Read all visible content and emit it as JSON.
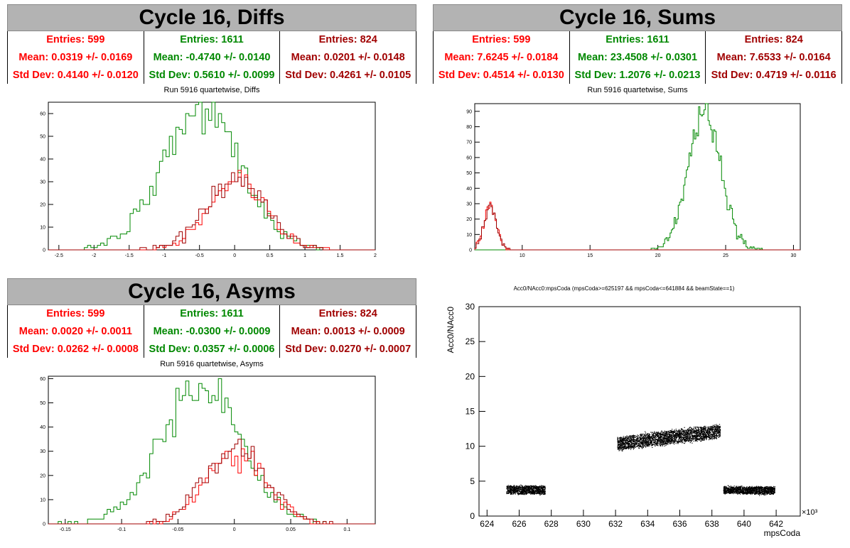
{
  "colors": {
    "red": "#ff0000",
    "green": "#008800",
    "darkred": "#a00000"
  },
  "panels": [
    {
      "title": "Cycle 16, Diffs",
      "stats": [
        {
          "entries": "Entries: 599",
          "mean": "Mean: 0.0319 +/- 0.0169",
          "std": "Std Dev: 0.4140 +/- 0.0120",
          "color": "#ff0000"
        },
        {
          "entries": "Entries: 1611",
          "mean": "Mean: -0.4740 +/- 0.0140",
          "std": "Std Dev: 0.5610 +/- 0.0099",
          "color": "#008800"
        },
        {
          "entries": "Entries: 824",
          "mean": "Mean: 0.0201 +/- 0.0148",
          "std": "Std Dev: 0.4261 +/- 0.0105",
          "color": "#a00000"
        }
      ],
      "subtitle": "Run 5916 quartetwise, Diffs"
    },
    {
      "title": "Cycle 16, Sums",
      "stats": [
        {
          "entries": "Entries: 599",
          "mean": "Mean: 7.6245 +/- 0.0184",
          "std": "Std Dev: 0.4514 +/- 0.0130",
          "color": "#ff0000"
        },
        {
          "entries": "Entries: 1611",
          "mean": "Mean: 23.4508 +/- 0.0301",
          "std": "Std Dev: 1.2076 +/- 0.0213",
          "color": "#008800"
        },
        {
          "entries": "Entries: 824",
          "mean": "Mean: 7.6533 +/- 0.0164",
          "std": "Std Dev: 0.4719 +/- 0.0116",
          "color": "#a00000"
        }
      ],
      "subtitle": "Run 5916 quartetwise, Sums"
    },
    {
      "title": "Cycle 16, Asyms",
      "stats": [
        {
          "entries": "Entries: 599",
          "mean": "Mean: 0.0020 +/- 0.0011",
          "std": "Std Dev: 0.0262 +/- 0.0008",
          "color": "#ff0000"
        },
        {
          "entries": "Entries: 1611",
          "mean": "Mean: -0.0300 +/- 0.0009",
          "std": "Std Dev: 0.0357 +/- 0.0006",
          "color": "#008800"
        },
        {
          "entries": "Entries: 824",
          "mean": "Mean: 0.0013 +/- 0.0009",
          "std": "Std Dev: 0.0270 +/- 0.0007",
          "color": "#a00000"
        }
      ],
      "subtitle": "Run 5916 quartetwise, Asyms"
    }
  ],
  "chart_data": [
    {
      "type": "histogram",
      "panel": "Diffs",
      "xlim": [
        -2.65,
        2.0
      ],
      "ylim": [
        0,
        65
      ],
      "xticks": [
        "-2.5",
        "-2",
        "-1.5",
        "-1",
        "-0.5",
        "0",
        "0.5",
        "1",
        "1.5",
        "2"
      ],
      "yticks": [
        "0",
        "10",
        "20",
        "30",
        "40",
        "50",
        "60"
      ],
      "series": [
        {
          "color": "#008800",
          "mean": -0.474,
          "std": 0.561,
          "peak": 62,
          "nbins": 100
        },
        {
          "color": "#ff0000",
          "mean": 0.0319,
          "std": 0.414,
          "peak": 28,
          "nbins": 100
        },
        {
          "color": "#a00000",
          "mean": 0.0201,
          "std": 0.4261,
          "peak": 31,
          "nbins": 100
        }
      ]
    },
    {
      "type": "histogram",
      "panel": "Sums",
      "xlim": [
        6.5,
        30.5
      ],
      "ylim": [
        0,
        95
      ],
      "xticks": [
        "10",
        "15",
        "20",
        "25",
        "30"
      ],
      "yticks": [
        "0",
        "10",
        "20",
        "30",
        "40",
        "50",
        "60",
        "70",
        "80",
        "90"
      ],
      "series": [
        {
          "color": "#008800",
          "mean": 23.45,
          "std": 1.2076,
          "peak": 89,
          "nbins": 240
        },
        {
          "color": "#ff0000",
          "mean": 7.6245,
          "std": 0.4514,
          "peak": 30,
          "nbins": 240
        },
        {
          "color": "#a00000",
          "mean": 7.6533,
          "std": 0.4719,
          "peak": 27,
          "nbins": 240
        }
      ]
    },
    {
      "type": "histogram",
      "panel": "Asyms",
      "xlim": [
        -0.165,
        0.125
      ],
      "ylim": [
        0,
        61
      ],
      "xticks": [
        "-0.15",
        "-0.1",
        "-0.05",
        "0",
        "0.05",
        "0.1"
      ],
      "yticks": [
        "0",
        "10",
        "20",
        "30",
        "40",
        "50",
        "60"
      ],
      "series": [
        {
          "color": "#008800",
          "mean": -0.03,
          "std": 0.0357,
          "peak": 57,
          "nbins": 100
        },
        {
          "color": "#ff0000",
          "mean": 0.002,
          "std": 0.0262,
          "peak": 30,
          "nbins": 100
        },
        {
          "color": "#a00000",
          "mean": 0.0013,
          "std": 0.027,
          "peak": 31,
          "nbins": 100
        }
      ]
    },
    {
      "type": "scatter",
      "panel": "Acc0",
      "title": "Acc0/NAcc0:mpsCoda (mpsCoda>=625197 && mpsCoda<=641884 && beamState==1)",
      "xlabel": "mpsCoda",
      "ylabel": "Acc0/NAcc0",
      "xmult": "×10³",
      "xlim": [
        623.5,
        643.5
      ],
      "ylim": [
        0,
        30
      ],
      "xticks": [
        "624",
        "626",
        "628",
        "630",
        "632",
        "634",
        "636",
        "638",
        "640",
        "642"
      ],
      "yticks": [
        "0",
        "5",
        "10",
        "15",
        "20",
        "25",
        "30"
      ],
      "clusters": [
        {
          "x0": 625.2,
          "x1": 627.6,
          "y0": 3.8,
          "y1": 3.8,
          "spread": 0.55
        },
        {
          "x0": 632.1,
          "x1": 638.5,
          "y0": 10.4,
          "y1": 12.2,
          "spread": 0.9
        },
        {
          "x0": 638.7,
          "x1": 641.9,
          "y0": 3.8,
          "y1": 3.7,
          "spread": 0.5
        }
      ]
    }
  ]
}
